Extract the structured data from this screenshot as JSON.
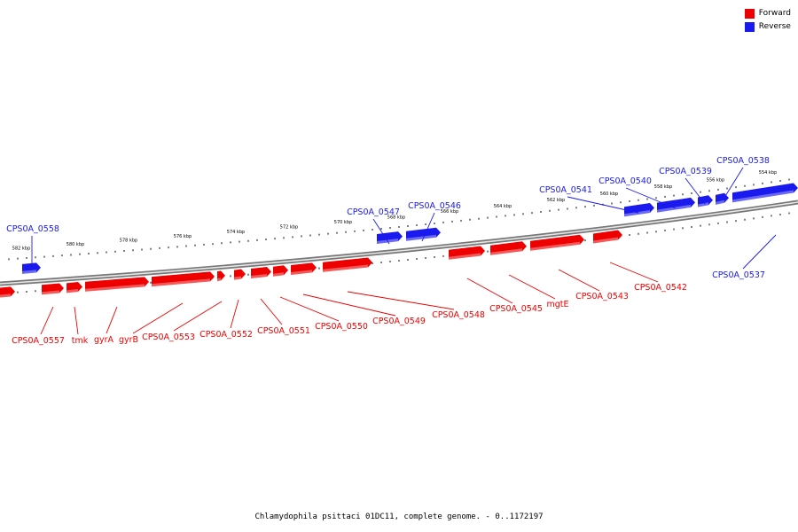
{
  "legend": {
    "forward_label": "Forward",
    "reverse_label": "Reverse",
    "forward_color": "#ee0000",
    "reverse_color": "#1a1aee"
  },
  "caption": "Chlamydophila psittaci 01DC11, complete genome. - 0..1172197",
  "scale_ticks": [
    "582 kbp",
    "580 kbp",
    "578 kbp",
    "576 kbp",
    "574 kbp",
    "572 kbp",
    "570 kbp",
    "568 kbp",
    "566 kbp",
    "564 kbp",
    "562 kbp",
    "560 kbp",
    "558 kbp",
    "556 kbp",
    "554 kbp"
  ],
  "genes": {
    "forward": [
      {
        "name": "CPS0A_0557",
        "strand": "forward"
      },
      {
        "name": "tmk",
        "strand": "forward"
      },
      {
        "name": "gyrA",
        "strand": "forward"
      },
      {
        "name": "gyrB",
        "strand": "forward"
      },
      {
        "name": "CPS0A_0553",
        "strand": "forward"
      },
      {
        "name": "CPS0A_0552",
        "strand": "forward"
      },
      {
        "name": "CPS0A_0551",
        "strand": "forward"
      },
      {
        "name": "CPS0A_0550",
        "strand": "forward"
      },
      {
        "name": "CPS0A_0549",
        "strand": "forward"
      },
      {
        "name": "CPS0A_0548",
        "strand": "forward"
      },
      {
        "name": "CPS0A_0545",
        "strand": "forward"
      },
      {
        "name": "mgtE",
        "strand": "forward"
      },
      {
        "name": "CPS0A_0543",
        "strand": "forward"
      },
      {
        "name": "CPS0A_0542",
        "strand": "forward"
      }
    ],
    "reverse": [
      {
        "name": "CPS0A_0558",
        "strand": "reverse"
      },
      {
        "name": "CPS0A_0547",
        "strand": "reverse"
      },
      {
        "name": "CPS0A_0546",
        "strand": "reverse"
      },
      {
        "name": "CPS0A_0541",
        "strand": "reverse"
      },
      {
        "name": "CPS0A_0540",
        "strand": "reverse"
      },
      {
        "name": "CPS0A_0539",
        "strand": "reverse"
      },
      {
        "name": "CPS0A_0538",
        "strand": "reverse"
      },
      {
        "name": "CPS0A_0537",
        "strand": "reverse"
      }
    ]
  }
}
